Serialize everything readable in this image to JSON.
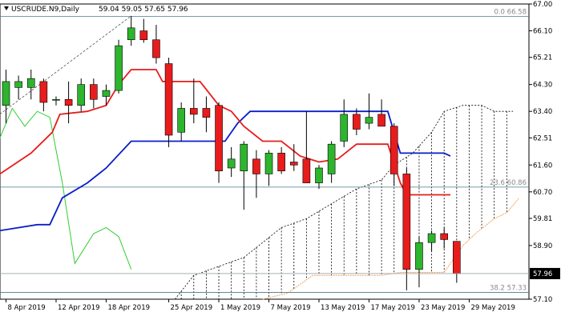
{
  "header": {
    "symbol": "USCRUDE.N9,Daily",
    "ohlc": "59.04 59.05 57.65 57.96"
  },
  "chart_data": {
    "type": "candlestick",
    "ylim": [
      57.1,
      67.0
    ],
    "y_ticks": [
      "67.00",
      "66.10",
      "65.21",
      "64.30",
      "63.40",
      "62.51",
      "61.60",
      "60.70",
      "59.81",
      "58.90",
      "57.10"
    ],
    "x_ticks": [
      "8 Apr 2019",
      "12 Apr 2019",
      "18 Apr 2019",
      "25 Apr 2019",
      "1 May 2019",
      "7 May 2019",
      "13 May 2019",
      "17 May 2019",
      "23 May 2019",
      "29 May 2019"
    ],
    "last_price": "57.96",
    "candles": [
      {
        "x": 0,
        "o": 63.6,
        "h": 64.8,
        "l": 63.0,
        "c": 64.4
      },
      {
        "x": 1,
        "o": 64.2,
        "h": 64.6,
        "l": 63.8,
        "c": 64.4
      },
      {
        "x": 2,
        "o": 64.2,
        "h": 64.8,
        "l": 63.8,
        "c": 64.5
      },
      {
        "x": 3,
        "o": 64.4,
        "h": 64.5,
        "l": 63.4,
        "c": 63.7
      },
      {
        "x": 4,
        "o": 63.8,
        "h": 63.9,
        "l": 63.6,
        "c": 63.8
      },
      {
        "x": 5,
        "o": 63.8,
        "h": 64.4,
        "l": 63.0,
        "c": 63.6
      },
      {
        "x": 6,
        "o": 63.6,
        "h": 64.5,
        "l": 63.4,
        "c": 64.3
      },
      {
        "x": 7,
        "o": 64.3,
        "h": 64.5,
        "l": 63.5,
        "c": 63.8
      },
      {
        "x": 8,
        "o": 63.9,
        "h": 64.3,
        "l": 63.6,
        "c": 64.1
      },
      {
        "x": 9,
        "o": 64.1,
        "h": 65.8,
        "l": 64.0,
        "c": 65.6
      },
      {
        "x": 10,
        "o": 65.8,
        "h": 66.6,
        "l": 65.6,
        "c": 66.2
      },
      {
        "x": 11,
        "o": 66.1,
        "h": 66.5,
        "l": 65.7,
        "c": 65.8
      },
      {
        "x": 12,
        "o": 65.8,
        "h": 66.3,
        "l": 65.0,
        "c": 65.2
      },
      {
        "x": 13,
        "o": 65.0,
        "h": 65.2,
        "l": 62.2,
        "c": 62.6
      },
      {
        "x": 14,
        "o": 62.7,
        "h": 63.7,
        "l": 62.4,
        "c": 63.5
      },
      {
        "x": 15,
        "o": 63.5,
        "h": 64.5,
        "l": 63.0,
        "c": 63.3
      },
      {
        "x": 16,
        "o": 63.5,
        "h": 63.9,
        "l": 62.7,
        "c": 63.2
      },
      {
        "x": 17,
        "o": 63.6,
        "h": 63.7,
        "l": 61.0,
        "c": 61.4
      },
      {
        "x": 18,
        "o": 61.5,
        "h": 62.2,
        "l": 61.2,
        "c": 61.8
      },
      {
        "x": 19,
        "o": 61.4,
        "h": 62.4,
        "l": 60.1,
        "c": 62.3
      },
      {
        "x": 20,
        "o": 61.8,
        "h": 62.1,
        "l": 60.5,
        "c": 61.3
      },
      {
        "x": 21,
        "o": 61.3,
        "h": 62.1,
        "l": 60.9,
        "c": 62.0
      },
      {
        "x": 22,
        "o": 62.0,
        "h": 62.2,
        "l": 61.3,
        "c": 61.4
      },
      {
        "x": 23,
        "o": 61.7,
        "h": 62.3,
        "l": 61.4,
        "c": 61.6
      },
      {
        "x": 24,
        "o": 61.8,
        "h": 63.4,
        "l": 61.0,
        "c": 61.0
      },
      {
        "x": 25,
        "o": 61.0,
        "h": 61.6,
        "l": 60.8,
        "c": 61.5
      },
      {
        "x": 26,
        "o": 61.3,
        "h": 62.4,
        "l": 61.0,
        "c": 62.3
      },
      {
        "x": 27,
        "o": 62.4,
        "h": 63.8,
        "l": 62.2,
        "c": 63.3
      },
      {
        "x": 28,
        "o": 63.3,
        "h": 63.5,
        "l": 62.6,
        "c": 62.8
      },
      {
        "x": 29,
        "o": 63.0,
        "h": 64.0,
        "l": 62.8,
        "c": 63.2
      },
      {
        "x": 30,
        "o": 63.3,
        "h": 63.8,
        "l": 62.9,
        "c": 62.9
      },
      {
        "x": 31,
        "o": 62.9,
        "h": 63.0,
        "l": 60.9,
        "c": 61.3
      },
      {
        "x": 32,
        "o": 61.3,
        "h": 61.5,
        "l": 57.4,
        "c": 58.1
      },
      {
        "x": 33,
        "o": 58.1,
        "h": 59.2,
        "l": 57.5,
        "c": 59.0
      },
      {
        "x": 34,
        "o": 59.0,
        "h": 59.4,
        "l": 58.7,
        "c": 59.3
      },
      {
        "x": 35,
        "o": 59.3,
        "h": 59.5,
        "l": 58.8,
        "c": 59.1
      },
      {
        "x": 36,
        "o": 59.04,
        "h": 59.05,
        "l": 57.65,
        "c": 57.96
      }
    ],
    "red_line": [
      {
        "x": -0.5,
        "y": 61.3
      },
      {
        "x": 2,
        "y": 62.0
      },
      {
        "x": 3.7,
        "y": 62.7
      },
      {
        "x": 4.3,
        "y": 63.3
      },
      {
        "x": 6.5,
        "y": 63.4
      },
      {
        "x": 8,
        "y": 63.6
      },
      {
        "x": 9,
        "y": 64.3
      },
      {
        "x": 10,
        "y": 64.8
      },
      {
        "x": 12,
        "y": 64.8
      },
      {
        "x": 12.5,
        "y": 64.4
      },
      {
        "x": 15.5,
        "y": 64.4
      },
      {
        "x": 17,
        "y": 63.6
      },
      {
        "x": 18,
        "y": 63.4
      },
      {
        "x": 19,
        "y": 62.9
      },
      {
        "x": 20.5,
        "y": 62.4
      },
      {
        "x": 22,
        "y": 62.4
      },
      {
        "x": 23.5,
        "y": 61.9
      },
      {
        "x": 25,
        "y": 61.7
      },
      {
        "x": 26.5,
        "y": 61.8
      },
      {
        "x": 28,
        "y": 62.3
      },
      {
        "x": 30.5,
        "y": 62.3
      },
      {
        "x": 31.5,
        "y": 61.0
      },
      {
        "x": 32,
        "y": 60.6
      },
      {
        "x": 35.5,
        "y": 60.6
      }
    ],
    "blue_line": [
      {
        "x": -0.5,
        "y": 59.4
      },
      {
        "x": 2.5,
        "y": 59.6
      },
      {
        "x": 3.5,
        "y": 59.6
      },
      {
        "x": 4.5,
        "y": 60.5
      },
      {
        "x": 6.5,
        "y": 61.0
      },
      {
        "x": 8,
        "y": 61.5
      },
      {
        "x": 10,
        "y": 62.4
      },
      {
        "x": 17.5,
        "y": 62.4
      },
      {
        "x": 18.5,
        "y": 63.0
      },
      {
        "x": 19.5,
        "y": 63.4
      },
      {
        "x": 30.5,
        "y": 63.4
      },
      {
        "x": 31.5,
        "y": 62.0
      },
      {
        "x": 35,
        "y": 62.0
      },
      {
        "x": 35.5,
        "y": 61.9
      }
    ],
    "green_line": [
      {
        "x": -0.5,
        "y": 62.5
      },
      {
        "x": 0.5,
        "y": 63.5
      },
      {
        "x": 1.5,
        "y": 62.9
      },
      {
        "x": 2.5,
        "y": 63.4
      },
      {
        "x": 3.5,
        "y": 63.2
      },
      {
        "x": 4.5,
        "y": 61.0
      },
      {
        "x": 5.5,
        "y": 58.3
      },
      {
        "x": 7,
        "y": 59.3
      },
      {
        "x": 8,
        "y": 59.5
      },
      {
        "x": 9,
        "y": 59.2
      },
      {
        "x": 10,
        "y": 58.1
      }
    ],
    "cloud_top": [
      {
        "x": 13.5,
        "y": 57.1
      },
      {
        "x": 15,
        "y": 57.9
      },
      {
        "x": 17,
        "y": 58.2
      },
      {
        "x": 19,
        "y": 58.5
      },
      {
        "x": 20.5,
        "y": 59.0
      },
      {
        "x": 22,
        "y": 59.5
      },
      {
        "x": 24,
        "y": 59.8
      },
      {
        "x": 26,
        "y": 60.3
      },
      {
        "x": 28,
        "y": 60.8
      },
      {
        "x": 30,
        "y": 61.1
      },
      {
        "x": 31,
        "y": 61.6
      },
      {
        "x": 32.5,
        "y": 62.0
      },
      {
        "x": 34,
        "y": 62.7
      },
      {
        "x": 35,
        "y": 63.4
      },
      {
        "x": 36.5,
        "y": 63.6
      },
      {
        "x": 38,
        "y": 63.6
      },
      {
        "x": 39,
        "y": 63.4
      },
      {
        "x": 40.5,
        "y": 63.4
      }
    ],
    "cloud_bottom": [
      {
        "x": 20.5,
        "y": 57.1
      },
      {
        "x": 22.5,
        "y": 57.3
      },
      {
        "x": 24.5,
        "y": 57.9
      },
      {
        "x": 30,
        "y": 57.9
      },
      {
        "x": 31.5,
        "y": 58.0
      },
      {
        "x": 35,
        "y": 58.0
      },
      {
        "x": 36.5,
        "y": 58.9
      },
      {
        "x": 37.5,
        "y": 59.3
      },
      {
        "x": 39,
        "y": 59.8
      },
      {
        "x": 40,
        "y": 60.0
      },
      {
        "x": 41,
        "y": 60.5
      }
    ],
    "diagonal_line": [
      {
        "x": -0.5,
        "y": 63.3
      },
      {
        "x": 10,
        "y": 66.6
      }
    ],
    "fibonacci": [
      {
        "label": "0.0 66.58",
        "y": 66.58
      },
      {
        "label": "23.6 60.86",
        "y": 60.86
      },
      {
        "label": "38.2 57.33",
        "y": 57.33
      }
    ],
    "colors": {
      "bull": "#2db52d",
      "bear": "#e81c1c",
      "red_line": "#e81c1c",
      "blue_line": "#0a1ec8",
      "green_line": "#33cc33",
      "cloud_bottom": "#f7a35c",
      "fib": "#4a7a8a",
      "last_price_bg": "#000000"
    }
  }
}
